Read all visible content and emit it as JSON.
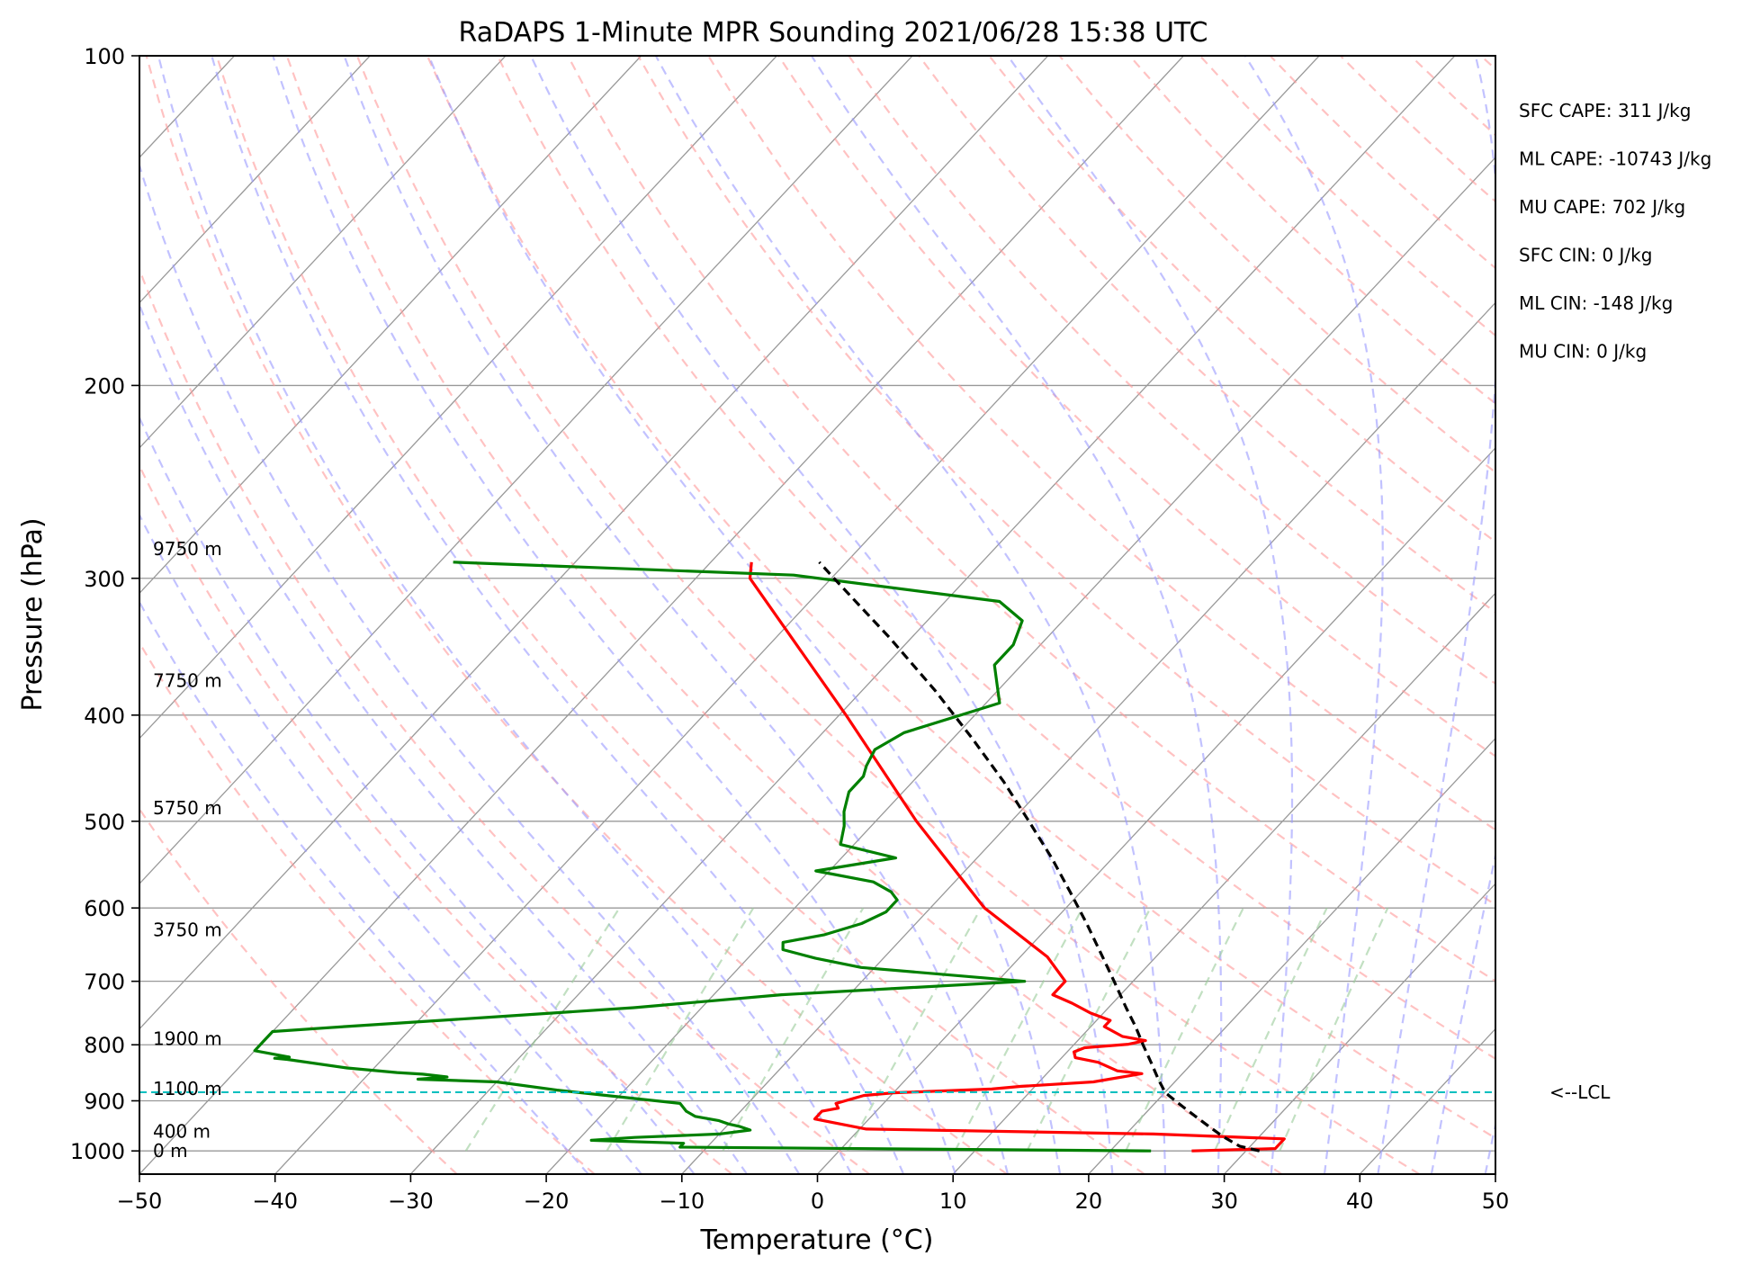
{
  "chart_data": {
    "type": "line",
    "subtype": "skew-t log-p sounding",
    "title": "RaDAPS 1-Minute MPR Sounding 2021/06/28 15:38 UTC",
    "xlabel": "Temperature (°C)",
    "ylabel": "Pressure (hPa)",
    "xlim": [
      -50,
      50
    ],
    "ylim": [
      1050,
      100
    ],
    "y_scale": "log",
    "x_ticks": [
      -50,
      -40,
      -30,
      -20,
      -10,
      0,
      10,
      20,
      30,
      40,
      50
    ],
    "x_tick_labels": [
      "−50",
      "−40",
      "−30",
      "−20",
      "−10",
      "0",
      "10",
      "20",
      "30",
      "40",
      "50"
    ],
    "y_ticks": [
      100,
      200,
      300,
      400,
      500,
      600,
      700,
      800,
      900,
      1000
    ],
    "y_tick_labels": [
      "100",
      "200",
      "300",
      "400",
      "500",
      "600",
      "700",
      "800",
      "900",
      "1000"
    ],
    "grid": true,
    "colors": {
      "temperature": "#ff0000",
      "dewpoint": "#008000",
      "parcel": "#000000",
      "dry_adiabats": "#ff9999",
      "moist_adiabats": "#9999ff",
      "mixing_ratio": "#99cc99",
      "isotherms": "#999999",
      "lcl": "#00bfbf"
    },
    "height_labels": [
      {
        "text": "9750 m",
        "p": 282
      },
      {
        "text": "7750 m",
        "p": 372
      },
      {
        "text": "5750 m",
        "p": 486
      },
      {
        "text": "3750 m",
        "p": 628
      },
      {
        "text": "1900 m",
        "p": 790
      },
      {
        "text": "1100 m",
        "p": 877
      },
      {
        "text": "400 m",
        "p": 960
      },
      {
        "text": "0 m",
        "p": 1000
      }
    ],
    "lcl": {
      "p": 884,
      "label": "<--LCL"
    },
    "stats": [
      "SFC CAPE: 311 J/kg",
      "ML CAPE: -10743 J/kg",
      "MU CAPE: 702 J/kg",
      "SFC CIN: 0 J/kg",
      "ML CIN: -148 J/kg",
      "MU CIN: 0 J/kg"
    ],
    "series": [
      {
        "key": "temperature",
        "p": [
          1000,
          995,
          985,
          975,
          965,
          955,
          935,
          928,
          920,
          914,
          905,
          900,
          895,
          890,
          885,
          878,
          873,
          865,
          850,
          845,
          830,
          822,
          812,
          805,
          799,
          793,
          786,
          770,
          760,
          748,
          733,
          720,
          700,
          665,
          600,
          500,
          400,
          300,
          290
        ],
        "t": [
          26.0,
          32.0,
          32.0,
          32.0,
          22.0,
          0.5,
          -4.0,
          -4.0,
          -4.0,
          -3.0,
          -3.5,
          -3.0,
          -2.5,
          -2.0,
          0.0,
          7.0,
          9.0,
          14.0,
          17.0,
          15.0,
          13.0,
          11.0,
          10.5,
          11.0,
          14.0,
          15.0,
          13.0,
          11.0,
          11.0,
          9.0,
          7.0,
          5.0,
          5.0,
          2.0,
          -6.0,
          -17.0,
          -29.5,
          -46.0,
          -47.0
        ]
      },
      {
        "key": "dewpoint",
        "p": [
          1000,
          992,
          984,
          978,
          972,
          965,
          957,
          950,
          945,
          938,
          930,
          920,
          905,
          880,
          865,
          860,
          856,
          851,
          848,
          840,
          825,
          823,
          821,
          810,
          795,
          778,
          770,
          755,
          740,
          720,
          700,
          680,
          667,
          655,
          645,
          635,
          620,
          605,
          598,
          590,
          580,
          568,
          555,
          540,
          525,
          505,
          490,
          470,
          455,
          445,
          430,
          415,
          390,
          360,
          345,
          328,
          315,
          298,
          290
        ],
        "t": [
          23.0,
          -12.0,
          -12.0,
          -19.0,
          -16.0,
          -10.0,
          -8.0,
          -9.0,
          -10.0,
          -11.0,
          -13.0,
          -14.0,
          -15.0,
          -25.0,
          -30.0,
          -36.0,
          -34.0,
          -36.0,
          -38.0,
          -42.0,
          -47.0,
          -48.0,
          -47.0,
          -50.0,
          -50.0,
          -50.0,
          -45.0,
          -35.0,
          -25.0,
          -15.0,
          2.0,
          -11.0,
          -15.0,
          -18.0,
          -18.5,
          -16.0,
          -14.0,
          -13.0,
          -13.0,
          -13.0,
          -14.0,
          -16.0,
          -21.0,
          -16.0,
          -21.0,
          -22.0,
          -23.0,
          -24.0,
          -24.0,
          -24.5,
          -25.0,
          -24.0,
          -19.0,
          -22.0,
          -22.0,
          -23.0,
          -26.0,
          -43.0,
          -69.0
        ]
      },
      {
        "key": "parcel",
        "p": [
          1000,
          990,
          970,
          950,
          930,
          910,
          890,
          884,
          860,
          830,
          800,
          770,
          740,
          700,
          660,
          620,
          580,
          540,
          500,
          460,
          420,
          380,
          340,
          300,
          290
        ],
        "t": [
          31.0,
          29.2,
          27.3,
          25.6,
          23.9,
          22.2,
          20.5,
          20.0,
          18.6,
          16.9,
          15.1,
          13.3,
          11.3,
          8.6,
          5.7,
          2.6,
          -0.8,
          -4.5,
          -8.7,
          -13.3,
          -18.6,
          -24.6,
          -31.6,
          -39.8,
          -42.0
        ]
      }
    ]
  }
}
